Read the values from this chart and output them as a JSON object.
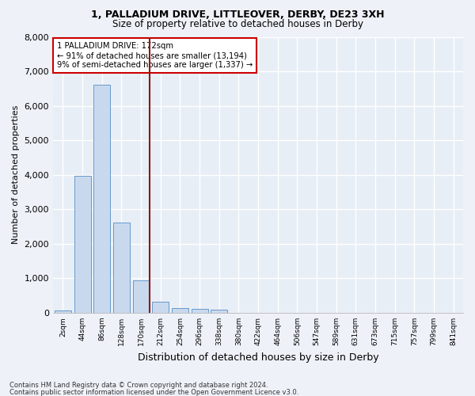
{
  "title1": "1, PALLADIUM DRIVE, LITTLEOVER, DERBY, DE23 3XH",
  "title2": "Size of property relative to detached houses in Derby",
  "xlabel": "Distribution of detached houses by size in Derby",
  "ylabel": "Number of detached properties",
  "bar_labels": [
    "2sqm",
    "44sqm",
    "86sqm",
    "128sqm",
    "170sqm",
    "212sqm",
    "254sqm",
    "296sqm",
    "338sqm",
    "380sqm",
    "422sqm",
    "464sqm",
    "506sqm",
    "547sqm",
    "589sqm",
    "631sqm",
    "673sqm",
    "715sqm",
    "757sqm",
    "799sqm",
    "841sqm"
  ],
  "bar_values": [
    70,
    3980,
    6620,
    2620,
    950,
    310,
    130,
    110,
    100,
    0,
    0,
    0,
    0,
    0,
    0,
    0,
    0,
    0,
    0,
    0,
    0
  ],
  "bar_color": "#c9d9ed",
  "bar_edge_color": "#6699cc",
  "marker_line_color": "#8b1a1a",
  "annotation_line1": "1 PALLADIUM DRIVE: 172sqm",
  "annotation_line2": "← 91% of detached houses are smaller (13,194)",
  "annotation_line3": "9% of semi-detached houses are larger (1,337) →",
  "annotation_box_color": "white",
  "annotation_box_edge": "#cc0000",
  "ylim": [
    0,
    8000
  ],
  "yticks": [
    0,
    1000,
    2000,
    3000,
    4000,
    5000,
    6000,
    7000,
    8000
  ],
  "footnote1": "Contains HM Land Registry data © Crown copyright and database right 2024.",
  "footnote2": "Contains public sector information licensed under the Open Government Licence v3.0.",
  "bg_color": "#eef2f8",
  "plot_bg_color": "#e8eef6"
}
